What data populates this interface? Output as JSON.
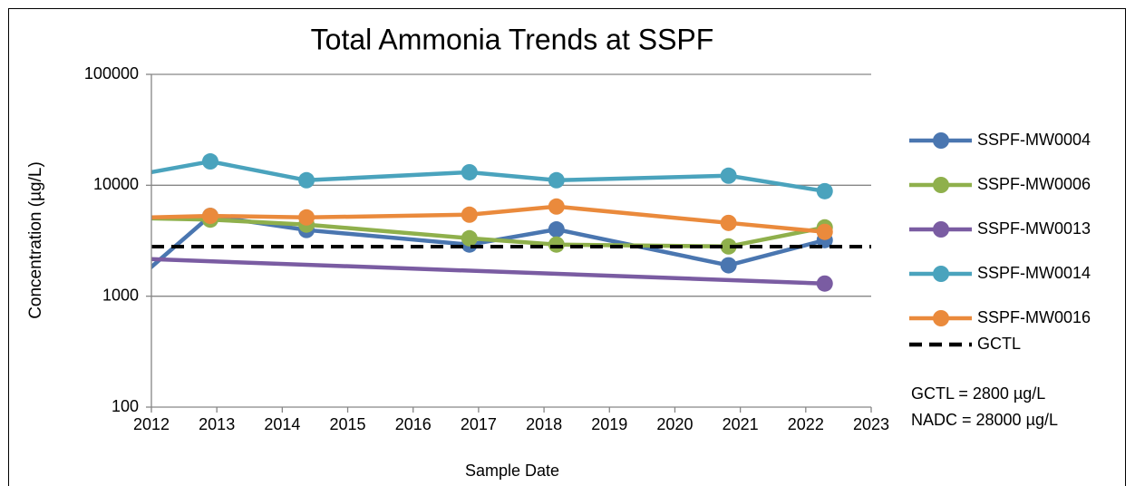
{
  "chart_data": {
    "type": "line",
    "title": "Total Ammonia Trends at SSPF",
    "xlabel": "Sample Date",
    "ylabel": "Concentration (µg/L)",
    "ylog": true,
    "grid": true,
    "legend": "right",
    "xlim": [
      2012,
      2023
    ],
    "xticks": [
      2012,
      2013,
      2014,
      2015,
      2016,
      2017,
      2018,
      2019,
      2020,
      2021,
      2022,
      2023
    ],
    "ylim": [
      100,
      100000
    ],
    "yticks": [
      100,
      1000,
      10000,
      100000
    ],
    "annotations": [
      "GCTL = 2800 µg/L",
      "NADC = 28000 µg/L"
    ],
    "series": [
      {
        "name": "SSPF-MW0004",
        "color": "#4a76b0",
        "x": [
          2011.8,
          2012.9,
          2014.37,
          2016.86,
          2018.19,
          2020.82,
          2022.29
        ],
        "values": [
          1450,
          5300,
          3950,
          2920,
          4000,
          1900,
          3200
        ]
      },
      {
        "name": "SSPF-MW0006",
        "color": "#8fb04c",
        "x": [
          2011.8,
          2012.9,
          2014.37,
          2016.86,
          2018.19,
          2020.82,
          2022.29
        ],
        "values": [
          5050,
          4900,
          4420,
          3330,
          2920,
          2810,
          4170
        ]
      },
      {
        "name": "SSPF-MW0013",
        "color": "#7a5ca2",
        "x": [
          2011.8,
          2022.29
        ],
        "values": [
          2180,
          1300
        ]
      },
      {
        "name": "SSPF-MW0014",
        "color": "#4aa3bd",
        "x": [
          2011.8,
          2012.9,
          2014.37,
          2016.86,
          2018.19,
          2020.82,
          2022.29
        ],
        "values": [
          12500,
          16400,
          11100,
          13100,
          11100,
          12200,
          8850
        ]
      },
      {
        "name": "SSPF-MW0016",
        "color": "#ea8a3c",
        "x": [
          2011.8,
          2012.9,
          2014.37,
          2016.86,
          2018.19,
          2020.82,
          2022.29
        ],
        "values": [
          5100,
          5300,
          5130,
          5430,
          6430,
          4580,
          3800
        ]
      },
      {
        "name": "GCTL",
        "color": "#000000",
        "dashed": true,
        "x": [
          2012,
          2023
        ],
        "values": [
          2800,
          2800
        ]
      }
    ]
  }
}
